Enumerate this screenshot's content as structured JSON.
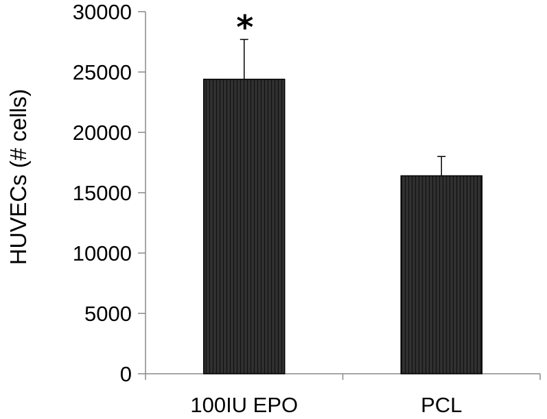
{
  "chart_data": {
    "type": "bar",
    "title": "",
    "xlabel": "",
    "ylabel": "HUVECs (# cells)",
    "categories": [
      "100IU EPO",
      "PCL"
    ],
    "values": [
      24400,
      16400
    ],
    "error_upper": [
      3300,
      1600
    ],
    "annotations": [
      "*",
      ""
    ],
    "ylim": [
      0,
      30000
    ],
    "yticks": [
      0,
      5000,
      10000,
      15000,
      20000,
      25000,
      30000
    ],
    "ytick_labels": [
      "0",
      "5000",
      "10000",
      "15000",
      "20000",
      "25000",
      "30000"
    ],
    "grid": false,
    "legend": "none",
    "colors": {
      "bar_fill": "#2b2b2b",
      "bar_stripe": "#1a1a1a",
      "bar_edge": "#000000",
      "axis": "#888888",
      "error_bar": "#000000",
      "text": "#000000"
    }
  }
}
